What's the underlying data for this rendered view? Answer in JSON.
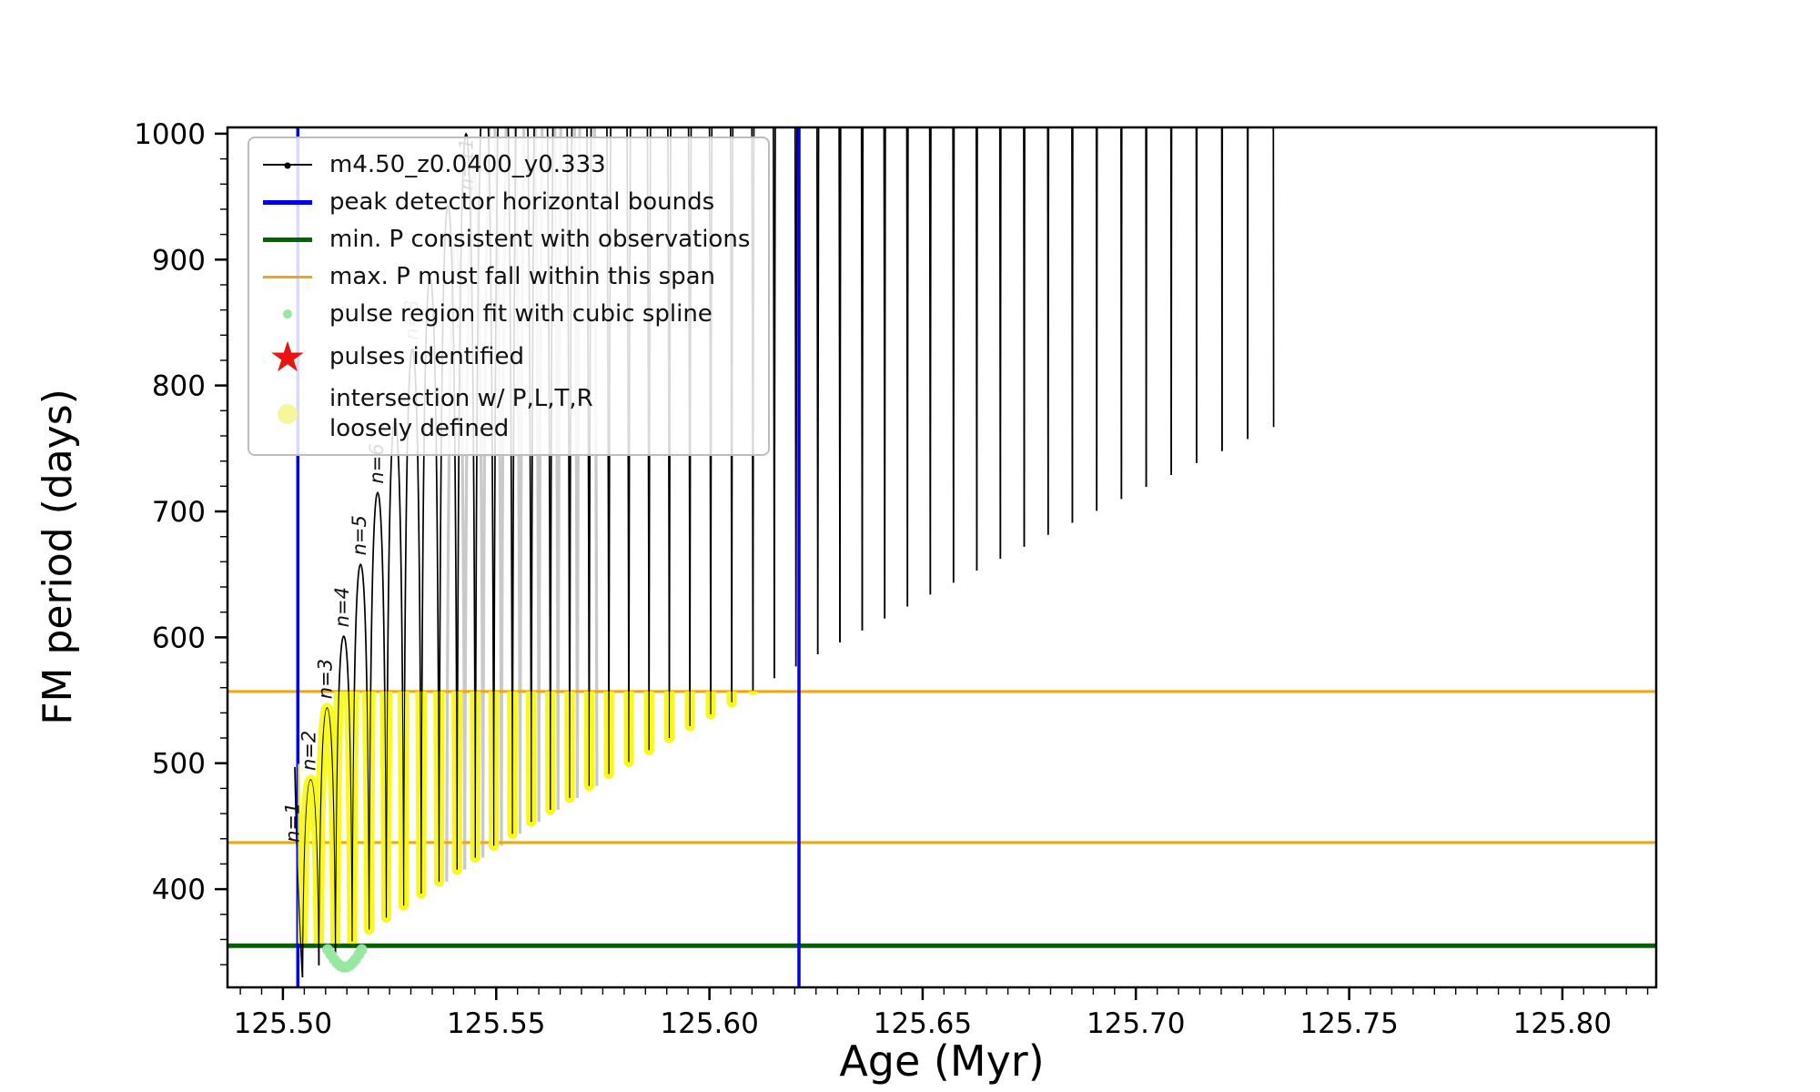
{
  "chart_data": {
    "type": "line",
    "title": "",
    "xlabel": "Age (Myr)",
    "ylabel": "FM period (days)",
    "xlim": [
      125.487,
      125.822
    ],
    "ylim": [
      322,
      1005
    ],
    "xticks": [
      125.5,
      125.55,
      125.6,
      125.65,
      125.7,
      125.75,
      125.8
    ],
    "yticks": [
      400,
      500,
      600,
      700,
      800,
      900,
      1000
    ],
    "x_minor_step": 0.005,
    "y_minor_step": 20,
    "grid": false,
    "series_label": "m4.50_z0.0400_y0.333",
    "series_color": "#000000",
    "pulses": {
      "count": 46,
      "t0": 125.5065,
      "spacing0": 0.0038,
      "spacing_growth": 5e-05,
      "peak_base": 430,
      "peak_step": 57,
      "min_base": 330,
      "min_step": 9.5
    },
    "lead_in": {
      "x": 125.5028,
      "y": 497
    },
    "ghost": {
      "start": 9,
      "end": 16,
      "dt": 0.0018,
      "color": "#c9c9c9"
    },
    "vlines": [
      {
        "x": 125.5035,
        "color": "#0000ee",
        "meaning": "peak detector left bound"
      },
      {
        "x": 125.621,
        "color": "#0000ee",
        "meaning": "peak detector right bound"
      }
    ],
    "hlines": [
      {
        "y": 355,
        "color": "#006400",
        "meaning": "min. P consistent with observations"
      },
      {
        "y": 437,
        "color": "#f0a511",
        "meaning": "max. P span lower edge"
      },
      {
        "y": 557,
        "color": "#f0a511",
        "meaning": "max. P span upper edge"
      }
    ],
    "highlight_band": {
      "x0": 125.5035,
      "x1": 125.621,
      "y0": 357,
      "y1": 557,
      "color": "#f8f719",
      "meaning": "intersection w/ P,L,T,R loosely defined"
    },
    "spline_points": {
      "x0": 125.5105,
      "x1": 125.5185,
      "y_base": 352,
      "amp": 14,
      "count": 12,
      "color": "#96e8a0",
      "meaning": "pulse region fit with cubic spline"
    },
    "pulse_labels": [
      {
        "i": 1,
        "text": "n=1",
        "color": "#111111"
      },
      {
        "i": 2,
        "text": "n=2",
        "color": "#111111"
      },
      {
        "i": 3,
        "text": "n=3",
        "color": "#111111"
      },
      {
        "i": 4,
        "text": "n=4",
        "color": "#111111"
      },
      {
        "i": 5,
        "text": "n=5",
        "color": "#111111"
      },
      {
        "i": 6,
        "text": "n=6",
        "color": "#111111"
      },
      {
        "i": 8,
        "text": "n=8",
        "color": "#999999"
      },
      {
        "i": 11,
        "text": "n=11",
        "color": "#111111"
      }
    ]
  },
  "legend": {
    "items": [
      {
        "type": "line-dot",
        "color": "#000000",
        "lw": 2,
        "label": "m4.50_z0.0400_y0.333"
      },
      {
        "type": "line",
        "color": "#0000ee",
        "lw": 5,
        "label": "peak detector horizontal bounds"
      },
      {
        "type": "line",
        "color": "#006400",
        "lw": 5,
        "label": "min. P consistent with observations"
      },
      {
        "type": "line",
        "color": "#f0a511",
        "lw": 3,
        "label": "max. P must fall within this span"
      },
      {
        "type": "dot",
        "color": "#96e8a0",
        "size": 10,
        "label": "pulse region fit with cubic spline"
      },
      {
        "type": "star",
        "color": "#ee1111",
        "size": 46,
        "label": "pulses identified"
      },
      {
        "type": "dot",
        "color": "#f6f69b",
        "size": 22,
        "label": "intersection w/ P,L,T,R\nloosely defined"
      }
    ]
  }
}
